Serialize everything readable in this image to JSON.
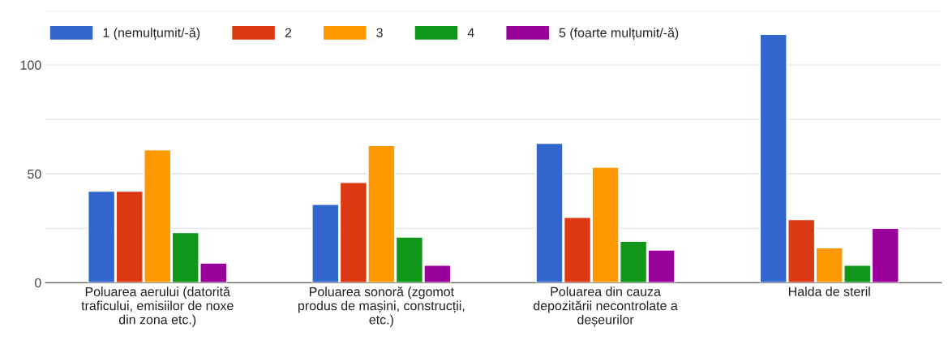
{
  "chart_data": {
    "type": "bar",
    "categories": [
      "Poluarea aerului (datorită\ntraficului, emisiilor de noxe\ndin zona etc.)",
      "Poluarea sonoră (zgomot\nprodus de mașini, construcții,\netc.)",
      "Poluarea din cauza\ndepozitării necontrolate a\ndeșeurilor",
      "Halda de steril"
    ],
    "series": [
      {
        "name": "1 (nemulțumit/-ă)",
        "color": "#3366cc",
        "values": [
          42,
          36,
          64,
          114
        ]
      },
      {
        "name": "2",
        "color": "#dc3912",
        "values": [
          42,
          46,
          30,
          29
        ]
      },
      {
        "name": "3",
        "color": "#ff9900",
        "values": [
          61,
          63,
          53,
          16
        ]
      },
      {
        "name": "4",
        "color": "#109618",
        "values": [
          23,
          21,
          19,
          8
        ]
      },
      {
        "name": "5 (foarte mulțumit/-ă)",
        "color": "#990099",
        "values": [
          9,
          8,
          15,
          25
        ]
      }
    ],
    "ylim": [
      0,
      125
    ],
    "yticks": [
      0,
      {
        "value": 25,
        "label": null
      },
      50,
      {
        "value": 75,
        "label": null
      },
      100,
      {
        "value": 125,
        "label": null
      }
    ],
    "grid": "y",
    "legend": "top left"
  }
}
